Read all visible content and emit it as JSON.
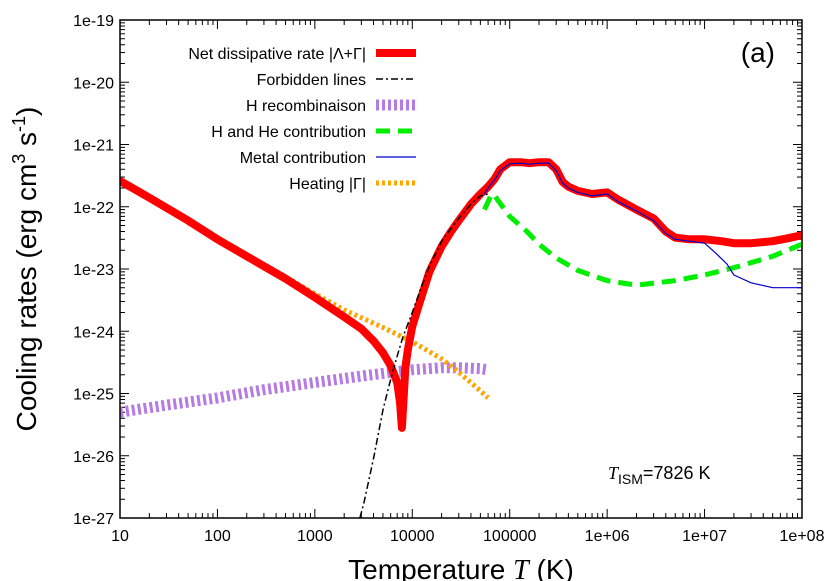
{
  "chart_data": {
    "type": "line",
    "xlabel_prefix": "Temperature ",
    "xlabel_var": "T",
    "xlabel_suffix": " (K)",
    "ylabel_prefix": "Cooling rates (erg cm",
    "ylabel_sup1": "3",
    "ylabel_mid": " s",
    "ylabel_sup2": "-1",
    "ylabel_suffix": ")",
    "x_scale": "log",
    "y_scale": "log",
    "xlim": [
      10,
      100000000
    ],
    "ylim": [
      1e-27,
      1e-19
    ],
    "x_tick_labels": [
      "10",
      "100",
      "1000",
      "10000",
      "100000",
      "1e+06",
      "1e+07",
      "1e+08"
    ],
    "y_tick_labels": [
      "1e-27",
      "1e-26",
      "1e-25",
      "1e-24",
      "1e-23",
      "1e-22",
      "1e-21",
      "1e-20",
      "1e-19"
    ],
    "panel_label": "(a)",
    "annotation": {
      "var": "T",
      "sub": "ISM",
      "rest": "=7826 K"
    },
    "legend_position": "top-left",
    "series": [
      {
        "name": "Net dissipative rate |Λ+Γ|",
        "color": "#ff0000",
        "style": "solid-thick",
        "points": [
          [
            10,
            2.6e-22
          ],
          [
            20,
            1.4e-22
          ],
          [
            50,
            6e-23
          ],
          [
            100,
            3e-23
          ],
          [
            200,
            1.6e-23
          ],
          [
            500,
            7e-24
          ],
          [
            1000,
            3.5e-24
          ],
          [
            2000,
            1.7e-24
          ],
          [
            3000,
            1.1e-24
          ],
          [
            4000,
            7e-25
          ],
          [
            5000,
            4.5e-25
          ],
          [
            6000,
            2.8e-25
          ],
          [
            7000,
            1.5e-25
          ],
          [
            7500,
            7e-26
          ],
          [
            7826,
            2.8e-26
          ],
          [
            8000,
            5e-26
          ],
          [
            8500,
            2.6e-25
          ],
          [
            9000,
            5e-25
          ],
          [
            10000,
            1.2e-24
          ],
          [
            12000,
            3e-24
          ],
          [
            15000,
            9e-24
          ],
          [
            20000,
            2.3e-23
          ],
          [
            25000,
            4e-23
          ],
          [
            30000,
            6e-23
          ],
          [
            40000,
            1.1e-22
          ],
          [
            50000,
            1.6e-22
          ],
          [
            60000,
            2.1e-22
          ],
          [
            70000,
            2.8e-22
          ],
          [
            80000,
            4e-22
          ],
          [
            100000,
            5.2e-22
          ],
          [
            130000,
            5.2e-22
          ],
          [
            160000,
            5e-22
          ],
          [
            200000,
            5.2e-22
          ],
          [
            250000,
            5.2e-22
          ],
          [
            300000,
            4e-22
          ],
          [
            350000,
            2.5e-22
          ],
          [
            400000,
            2.1e-22
          ],
          [
            500000,
            1.8e-22
          ],
          [
            700000,
            1.6e-22
          ],
          [
            1000000,
            1.7e-22
          ],
          [
            1300000,
            1.3e-22
          ],
          [
            2000000,
            9e-23
          ],
          [
            3000000,
            6.5e-23
          ],
          [
            4000000,
            4e-23
          ],
          [
            5000000,
            3.2e-23
          ],
          [
            7000000,
            3e-23
          ],
          [
            10000000,
            3e-23
          ],
          [
            15000000,
            2.8e-23
          ],
          [
            20000000,
            2.6e-23
          ],
          [
            30000000,
            2.6e-23
          ],
          [
            50000000,
            2.8e-23
          ],
          [
            70000000,
            3.1e-23
          ],
          [
            100000000,
            3.5e-23
          ]
        ]
      },
      {
        "name": "Forbidden lines",
        "color": "#000000",
        "style": "dash-dot",
        "points": [
          [
            2900,
            1e-27
          ],
          [
            3200,
            1.8e-27
          ],
          [
            4000,
            9e-27
          ],
          [
            5000,
            5.5e-26
          ],
          [
            6000,
            1.7e-25
          ],
          [
            7000,
            4e-25
          ],
          [
            8000,
            8e-25
          ],
          [
            10000,
            2e-24
          ],
          [
            12000,
            4.5e-24
          ],
          [
            15000,
            1.1e-23
          ],
          [
            20000,
            2.8e-23
          ],
          [
            25000,
            4.5e-23
          ],
          [
            30000,
            6.5e-23
          ],
          [
            40000,
            1.1e-22
          ],
          [
            50000,
            1.5e-22
          ],
          [
            60000,
            1.6e-22
          ]
        ]
      },
      {
        "name": "H recombinaison",
        "color": "#b57be3",
        "style": "dotted-thick",
        "points": [
          [
            10,
            5e-26
          ],
          [
            30,
            6.5e-26
          ],
          [
            100,
            8.5e-26
          ],
          [
            300,
            1.15e-25
          ],
          [
            1000,
            1.5e-25
          ],
          [
            3000,
            1.9e-25
          ],
          [
            10000,
            2.4e-25
          ],
          [
            20000,
            2.6e-25
          ],
          [
            30000,
            2.6e-25
          ],
          [
            50000,
            2.5e-25
          ],
          [
            60000,
            2.4e-25
          ]
        ]
      },
      {
        "name": "H and He contribution",
        "color": "#00ee00",
        "style": "dashed",
        "points": [
          [
            55000,
            9e-23
          ],
          [
            60000,
            1.2e-22
          ],
          [
            65000,
            1.6e-22
          ],
          [
            70000,
            1.5e-22
          ],
          [
            100000,
            7e-23
          ],
          [
            150000,
            4e-23
          ],
          [
            200000,
            2.5e-23
          ],
          [
            300000,
            1.5e-23
          ],
          [
            500000,
            9.5e-24
          ],
          [
            1000000,
            6.5e-24
          ],
          [
            2000000,
            5.5e-24
          ],
          [
            5000000,
            6.5e-24
          ],
          [
            10000000,
            8e-24
          ],
          [
            20000000,
            1.05e-23
          ],
          [
            50000000,
            1.6e-23
          ],
          [
            100000000,
            2.5e-23
          ]
        ]
      },
      {
        "name": "Metal contribution",
        "color": "#0000cc",
        "style": "thin",
        "points": [
          [
            55000,
            1.6e-22
          ],
          [
            60000,
            2e-22
          ],
          [
            70000,
            2.7e-22
          ],
          [
            80000,
            3.8e-22
          ],
          [
            100000,
            4.9e-22
          ],
          [
            130000,
            5e-22
          ],
          [
            160000,
            4.8e-22
          ],
          [
            200000,
            5e-22
          ],
          [
            250000,
            5e-22
          ],
          [
            300000,
            3.8e-22
          ],
          [
            350000,
            2.4e-22
          ],
          [
            400000,
            2e-22
          ],
          [
            500000,
            1.7e-22
          ],
          [
            700000,
            1.5e-22
          ],
          [
            1000000,
            1.6e-22
          ],
          [
            1300000,
            1.2e-22
          ],
          [
            2000000,
            8.5e-23
          ],
          [
            3000000,
            6e-23
          ],
          [
            4000000,
            3.7e-23
          ],
          [
            5000000,
            3e-23
          ],
          [
            7000000,
            2.8e-23
          ],
          [
            10000000,
            2.6e-23
          ],
          [
            13000000,
            1.8e-23
          ],
          [
            17000000,
            1.2e-23
          ],
          [
            20000000,
            8e-24
          ],
          [
            30000000,
            6e-24
          ],
          [
            50000000,
            5e-24
          ],
          [
            100000000,
            5e-24
          ]
        ]
      },
      {
        "name": "Heating |Γ|",
        "color": "#ffa500",
        "style": "dotted",
        "points": [
          [
            10,
            2.6e-22
          ],
          [
            20,
            1.45e-22
          ],
          [
            50,
            6.2e-23
          ],
          [
            100,
            3.2e-23
          ],
          [
            200,
            1.7e-23
          ],
          [
            500,
            7.5e-24
          ],
          [
            1000,
            4e-24
          ],
          [
            2000,
            2.2e-24
          ],
          [
            5000,
            1.15e-24
          ],
          [
            10000,
            6.8e-25
          ],
          [
            20000,
            3.6e-25
          ],
          [
            30000,
            2.2e-25
          ],
          [
            50000,
            1.1e-25
          ],
          [
            60000,
            8.5e-26
          ]
        ]
      }
    ]
  }
}
